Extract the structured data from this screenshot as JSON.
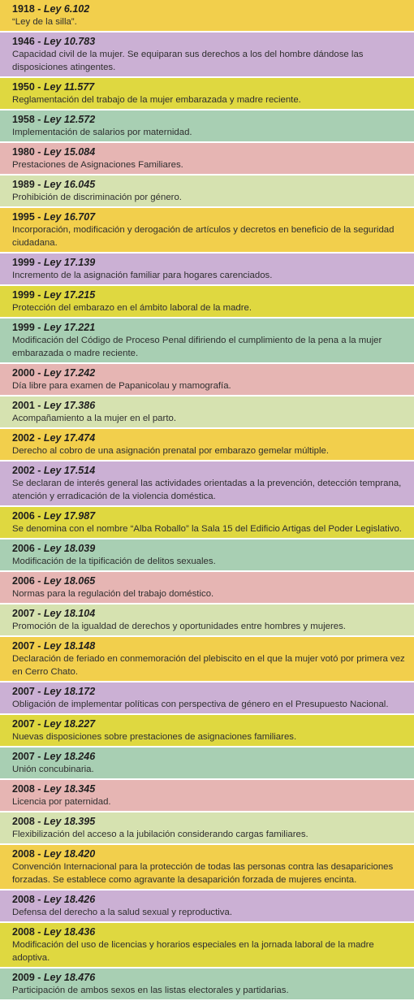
{
  "entries": [
    {
      "year": "1918",
      "law": "Ley 6.102",
      "text": "“Ley de la silla”.",
      "color": "yellow"
    },
    {
      "year": "1946",
      "law": "Ley 10.783",
      "text": "Capacidad civil de la mujer. Se equiparan sus derechos a los del hombre dándose las disposiciones atingentes.",
      "color": "purple"
    },
    {
      "year": "1950",
      "law": "Ley 11.577",
      "text": "Reglamentación del trabajo de la mujer embarazada y madre reciente.",
      "color": "lime"
    },
    {
      "year": "1958",
      "law": "Ley 12.572",
      "text": "Implementación de salarios por maternidad.",
      "color": "green"
    },
    {
      "year": "1980",
      "law": "Ley 15.084",
      "text": "Prestaciones de Asignaciones Familiares.",
      "color": "pink"
    },
    {
      "year": "1989",
      "law": "Ley 16.045",
      "text": "Prohibición de discriminación por género.",
      "color": "pale"
    },
    {
      "year": "1995",
      "law": "Ley 16.707",
      "text": "Incorporación, modificación y derogación de artículos y decretos en beneficio de la seguridad ciudadana.",
      "color": "yellow"
    },
    {
      "year": "1999",
      "law": "Ley 17.139",
      "text": "Incremento de la asignación familiar para hogares carenciados.",
      "color": "purple"
    },
    {
      "year": "1999",
      "law": "Ley 17.215",
      "text": "Protección del embarazo en el ámbito laboral de la madre.",
      "color": "lime"
    },
    {
      "year": "1999",
      "law": "Ley 17.221",
      "text": "Modificación del Código de Proceso Penal difiriendo el cumplimiento de la pena a la mujer embarazada o madre reciente.",
      "color": "green"
    },
    {
      "year": "2000",
      "law": "Ley 17.242",
      "text": "Día libre para examen de Papanicolau y mamografía.",
      "color": "pink"
    },
    {
      "year": "2001",
      "law": "Ley 17.386",
      "text": "Acompañamiento a la mujer en el parto.",
      "color": "pale"
    },
    {
      "year": "2002",
      "law": "Ley 17.474",
      "text": "Derecho al cobro de una asignación prenatal por embarazo gemelar múltiple.",
      "color": "yellow"
    },
    {
      "year": "2002",
      "law": "Ley 17.514",
      "text": "Se declaran de interés general las actividades orientadas a la prevención, detección temprana, atención y erradicación de la violencia doméstica.",
      "color": "purple"
    },
    {
      "year": "2006",
      "law": "Ley 17.987",
      "text": "Se denomina con el nombre “Alba Roballo” la Sala 15 del Edificio Artigas del Poder Legislativo.",
      "color": "lime"
    },
    {
      "year": "2006",
      "law": "Ley 18.039",
      "text": "Modificación de la tipificación de delitos sexuales.",
      "color": "green"
    },
    {
      "year": "2006",
      "law": "Ley 18.065",
      "text": "Normas para la regulación del trabajo doméstico.",
      "color": "pink"
    },
    {
      "year": "2007",
      "law": "Ley 18.104",
      "text": "Promoción de la igualdad de derechos y oportunidades entre hombres y mujeres.",
      "color": "pale"
    },
    {
      "year": "2007",
      "law": "Ley 18.148",
      "text": "Declaración de feriado en conmemoración del plebiscito en el que la mujer votó por primera vez en Cerro Chato.",
      "color": "yellow"
    },
    {
      "year": "2007",
      "law": "Ley 18.172",
      "text": "Obligación de implementar políticas con perspectiva de género en el Presupuesto Nacional.",
      "color": "purple"
    },
    {
      "year": "2007",
      "law": "Ley 18.227",
      "text": "Nuevas disposiciones sobre prestaciones de asignaciones familiares.",
      "color": "lime"
    },
    {
      "year": "2007",
      "law": "Ley 18.246",
      "text": "Unión concubinaria.",
      "color": "green"
    },
    {
      "year": "2008",
      "law": "Ley 18.345",
      "text": "Licencia por paternidad.",
      "color": "pink"
    },
    {
      "year": "2008",
      "law": "Ley 18.395",
      "text": "Flexibilización del acceso a la jubilación considerando cargas familiares.",
      "color": "pale"
    },
    {
      "year": "2008",
      "law": "Ley 18.420",
      "text": "Convención Internacional para la protección de todas las personas contra las desapariciones forzadas. Se establece como agravante la desaparición forzada de mujeres encinta.",
      "color": "yellow"
    },
    {
      "year": "2008",
      "law": "Ley 18.426",
      "text": "Defensa del derecho a la salud sexual y reproductiva.",
      "color": "purple"
    },
    {
      "year": "2008",
      "law": "Ley 18.436",
      "text": "Modificación del uso de licencias y horarios especiales en la jornada laboral de la madre adoptiva.",
      "color": "lime"
    },
    {
      "year": "2009",
      "law": "Ley 18.476",
      "text": "Participación de ambos sexos en las listas electorales y partidarias.",
      "color": "green"
    }
  ]
}
